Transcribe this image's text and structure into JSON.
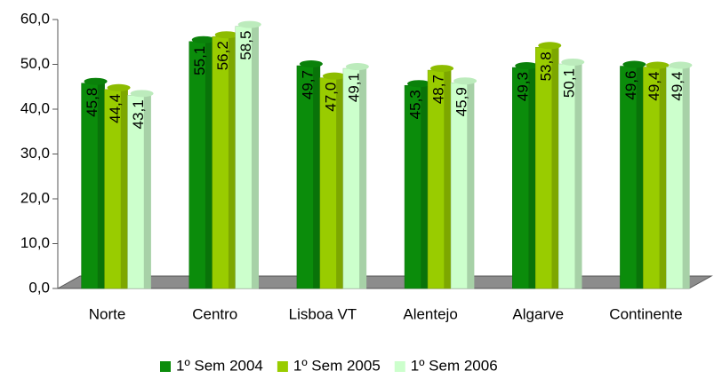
{
  "chart_data": {
    "type": "bar",
    "categories": [
      "Norte",
      "Centro",
      "Lisboa VT",
      "Alentejo",
      "Algarve",
      "Continente"
    ],
    "series": [
      {
        "name": "1º Sem 2004",
        "color": "#0b8c0b",
        "values": [
          45.8,
          55.1,
          49.7,
          45.3,
          49.3,
          49.6
        ],
        "value_labels": [
          "45,8",
          "55,1",
          "49,7",
          "45,3",
          "49,3",
          "49,6"
        ]
      },
      {
        "name": "1º Sem 2005",
        "color": "#99cc00",
        "values": [
          44.4,
          56.2,
          47.0,
          48.7,
          53.8,
          49.4
        ],
        "value_labels": [
          "44,4",
          "56,2",
          "47,0",
          "48,7",
          "53,8",
          "49,4"
        ]
      },
      {
        "name": "1º Sem 2006",
        "color": "#ccffcc",
        "values": [
          43.1,
          58.5,
          49.1,
          45.9,
          50.1,
          49.4
        ],
        "value_labels": [
          "43,1",
          "58,5",
          "49,1",
          "45,9",
          "50,1",
          "49,4"
        ]
      }
    ],
    "ylim": [
      0,
      60
    ],
    "yticks": [
      {
        "value": 0,
        "label": "0,0"
      },
      {
        "value": 10,
        "label": "10,0"
      },
      {
        "value": 20,
        "label": "20,0"
      },
      {
        "value": 30,
        "label": "30,0"
      },
      {
        "value": 40,
        "label": "40,0"
      },
      {
        "value": 50,
        "label": "50,0"
      },
      {
        "value": 60,
        "label": "60,0"
      }
    ],
    "legend": "bottom"
  }
}
